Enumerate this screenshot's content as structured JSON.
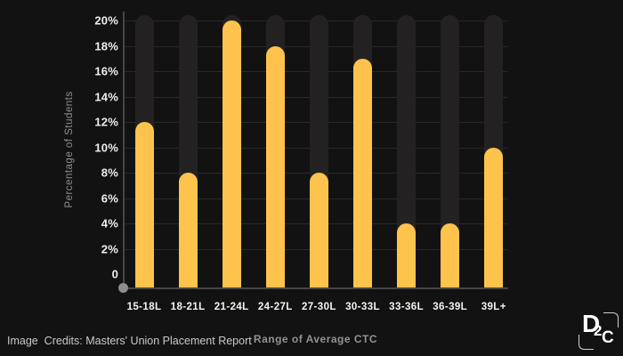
{
  "chart_data": {
    "type": "bar",
    "title": "",
    "categories": [
      "15-18L",
      "18-21L",
      "21-24L",
      "24-27L",
      "27-30L",
      "30-33L",
      "33-36L",
      "36-39L",
      "39L+"
    ],
    "values": [
      12,
      8,
      20,
      18,
      8,
      17,
      4,
      4,
      10
    ],
    "unit": "%",
    "xlabel": "Range of Average CTC",
    "ylabel": "Percentage of Students",
    "ylim": [
      0,
      20
    ],
    "yticks": [
      0,
      2,
      4,
      6,
      8,
      10,
      12,
      14,
      16,
      18,
      20
    ],
    "ytick_labels": [
      "0",
      "2%",
      "4%",
      "6%",
      "8%",
      "10%",
      "12%",
      "14%",
      "16%",
      "18%",
      "20%"
    ],
    "grid": true,
    "legend": false,
    "colors": {
      "bar": "#FDC34D",
      "bar_track": "#242122",
      "background": "#121212",
      "gridline": "#282828",
      "axis": "#464646",
      "tick_text": "#efefef",
      "axis_title_text": "#929292",
      "origin_dot": "#8d8d8d"
    }
  },
  "footer": {
    "credit": "Image  Credits: Masters' Union Placement Report"
  },
  "logo": {
    "letter_d": "D",
    "letter_2": "2",
    "letter_c": "C"
  }
}
